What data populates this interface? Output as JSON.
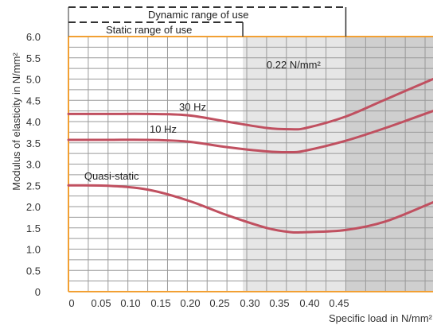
{
  "chart_data": {
    "type": "line",
    "xlabel": "Specific load in N/mm²",
    "ylabel": "Modulus of elasticity in N/mm²",
    "xlim": [
      0,
      0.46
    ],
    "ylim": [
      0,
      6.0
    ],
    "x_ticks": [
      "0",
      "0.05",
      "0.10",
      "0.15",
      "0.20",
      "0.25",
      "0.30",
      "0.35",
      "0.40",
      "0.45"
    ],
    "y_ticks": [
      "0",
      "0.5",
      "1.0",
      "1.5",
      "2.0",
      "2.5",
      "3.0",
      "3.5",
      "4.0",
      "4.5",
      "5.0",
      "5.5",
      "6.0"
    ],
    "grid": true,
    "series": [
      {
        "name": "30 Hz",
        "x": [
          0,
          0.05,
          0.1,
          0.15,
          0.2,
          0.25,
          0.28,
          0.3,
          0.35,
          0.4,
          0.46
        ],
        "y": [
          4.18,
          4.18,
          4.18,
          4.15,
          4.0,
          3.85,
          3.82,
          3.85,
          4.12,
          4.52,
          5.0
        ]
      },
      {
        "name": "10 Hz",
        "x": [
          0,
          0.05,
          0.1,
          0.15,
          0.2,
          0.25,
          0.28,
          0.3,
          0.35,
          0.4,
          0.46
        ],
        "y": [
          3.57,
          3.57,
          3.57,
          3.53,
          3.4,
          3.3,
          3.28,
          3.32,
          3.55,
          3.85,
          4.25
        ]
      },
      {
        "name": "Quasi-static",
        "x": [
          0,
          0.05,
          0.1,
          0.15,
          0.2,
          0.25,
          0.28,
          0.3,
          0.35,
          0.4,
          0.46
        ],
        "y": [
          2.5,
          2.49,
          2.4,
          2.15,
          1.8,
          1.5,
          1.4,
          1.4,
          1.45,
          1.65,
          2.1
        ]
      }
    ],
    "annotations": [
      {
        "text": "0.22 N/mm²",
        "x": 0.25,
        "y": 5.2
      },
      {
        "text": "Quasi-static",
        "x": 0.02,
        "y": 2.58
      }
    ],
    "ranges": [
      {
        "label": "Dynamic range of use",
        "from": 0,
        "to": 0.35
      },
      {
        "label": "Static range of use",
        "from": 0,
        "to": 0.22
      }
    ],
    "shaded_regions": [
      {
        "from": 0.22,
        "to": 0.35,
        "color": "#e6e6e6"
      },
      {
        "from": 0.35,
        "to": 0.46,
        "color": "#cfcfcf"
      }
    ],
    "colors": {
      "series": "#c05060",
      "frame": "#f2a033",
      "grid": "#9a9a9a"
    }
  }
}
